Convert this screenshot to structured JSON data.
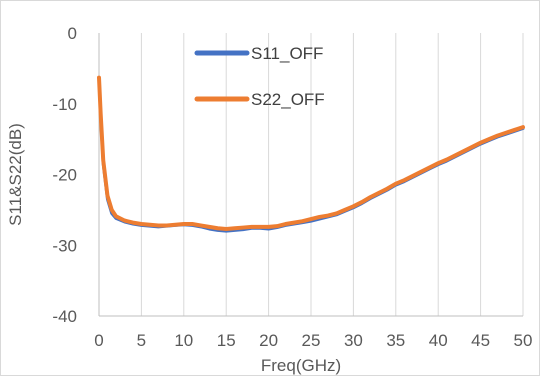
{
  "chart_data": {
    "type": "line",
    "title": "",
    "xlabel": "Freq(GHz)",
    "ylabel": "S11&S22(dB)",
    "xlim": [
      0,
      50
    ],
    "ylim": [
      -40,
      0
    ],
    "xticks": [
      0,
      5,
      10,
      15,
      20,
      25,
      30,
      35,
      40,
      45,
      50
    ],
    "yticks": [
      0,
      -10,
      -20,
      -30,
      -40
    ],
    "grid": "vertical",
    "legend_position": "top-center",
    "series": [
      {
        "name": "S11_OFF",
        "color": "#4472C4",
        "x": [
          0,
          0.2,
          0.5,
          1,
          1.5,
          2,
          3,
          4,
          5,
          6,
          7,
          8,
          9,
          10,
          11,
          12,
          13,
          14,
          15,
          16,
          17,
          18,
          19,
          20,
          21,
          22,
          23,
          24,
          25,
          26,
          27,
          28,
          29,
          30,
          31,
          32,
          33,
          34,
          35,
          36,
          37,
          38,
          39,
          40,
          41,
          42,
          43,
          44,
          45,
          46,
          47,
          48,
          49,
          50
        ],
        "y": [
          -6.5,
          -12,
          -18.5,
          -23.5,
          -25.5,
          -26.2,
          -26.7,
          -27.0,
          -27.2,
          -27.3,
          -27.4,
          -27.3,
          -27.2,
          -27.1,
          -27.2,
          -27.4,
          -27.7,
          -27.9,
          -28.0,
          -27.9,
          -27.8,
          -27.6,
          -27.6,
          -27.7,
          -27.5,
          -27.2,
          -27.0,
          -26.8,
          -26.6,
          -26.3,
          -26.0,
          -25.7,
          -25.2,
          -24.7,
          -24.1,
          -23.4,
          -22.8,
          -22.2,
          -21.5,
          -21.0,
          -20.4,
          -19.8,
          -19.2,
          -18.6,
          -18.1,
          -17.5,
          -16.9,
          -16.3,
          -15.7,
          -15.2,
          -14.7,
          -14.3,
          -13.9,
          -13.5
        ]
      },
      {
        "name": "S22_OFF",
        "color": "#ED7D31",
        "x": [
          0,
          0.2,
          0.5,
          1,
          1.5,
          2,
          3,
          4,
          5,
          6,
          7,
          8,
          9,
          10,
          11,
          12,
          13,
          14,
          15,
          16,
          17,
          18,
          19,
          20,
          21,
          22,
          23,
          24,
          25,
          26,
          27,
          28,
          29,
          30,
          31,
          32,
          33,
          34,
          35,
          36,
          37,
          38,
          39,
          40,
          41,
          42,
          43,
          44,
          45,
          46,
          47,
          48,
          49,
          50
        ],
        "y": [
          -6.3,
          -11.5,
          -18,
          -23,
          -25.0,
          -25.9,
          -26.5,
          -26.8,
          -27.0,
          -27.1,
          -27.2,
          -27.2,
          -27.1,
          -27.0,
          -27.0,
          -27.2,
          -27.4,
          -27.6,
          -27.7,
          -27.6,
          -27.5,
          -27.4,
          -27.4,
          -27.4,
          -27.3,
          -27.0,
          -26.8,
          -26.6,
          -26.3,
          -26.0,
          -25.8,
          -25.5,
          -25.0,
          -24.5,
          -23.9,
          -23.2,
          -22.6,
          -22.0,
          -21.3,
          -20.8,
          -20.2,
          -19.6,
          -19.0,
          -18.4,
          -17.9,
          -17.3,
          -16.7,
          -16.1,
          -15.5,
          -15.0,
          -14.5,
          -14.1,
          -13.7,
          -13.3
        ]
      }
    ]
  }
}
